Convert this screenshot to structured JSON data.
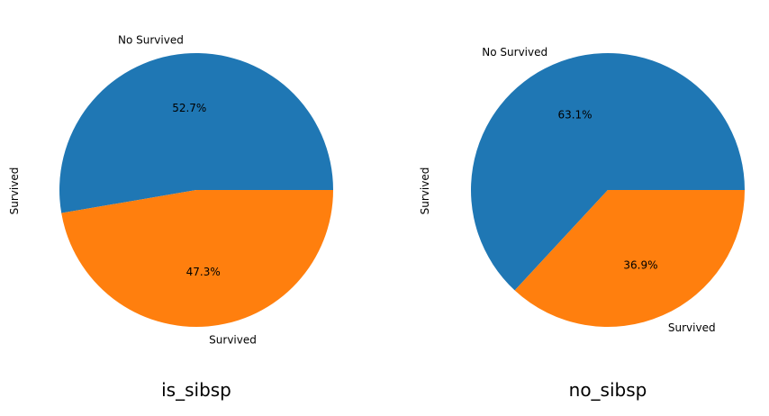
{
  "chart_data": [
    {
      "type": "pie",
      "title": "is_sibsp",
      "ylabel": "Survived",
      "categories": [
        "No Survived",
        "Survived"
      ],
      "values": [
        52.7,
        47.3
      ],
      "value_labels": [
        "52.7%",
        "47.3%"
      ],
      "colors": [
        "#1f77b4",
        "#ff7f0e"
      ],
      "legend": "none"
    },
    {
      "type": "pie",
      "title": "no_sibsp",
      "ylabel": "Survived",
      "categories": [
        "No Survived",
        "Survived"
      ],
      "values": [
        63.1,
        36.9
      ],
      "value_labels": [
        "63.1%",
        "36.9%"
      ],
      "colors": [
        "#1f77b4",
        "#ff7f0e"
      ],
      "legend": "none"
    }
  ]
}
